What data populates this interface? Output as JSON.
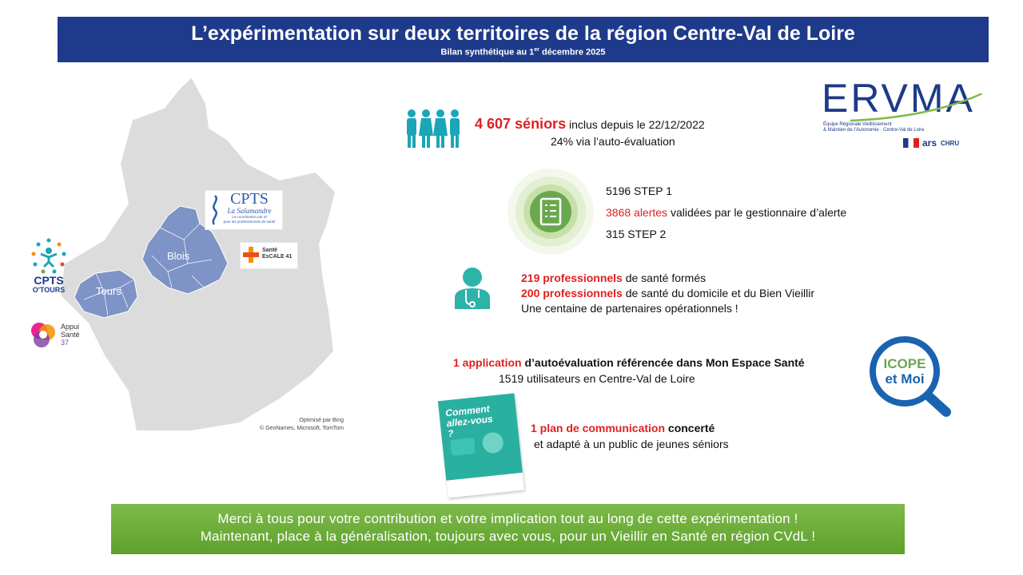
{
  "header": {
    "title": "L’expérimentation sur deux territoires de la région Centre-Val de Loire",
    "subtitle_prefix": "Bilan synthétique  au 1",
    "subtitle_sup": "er",
    "subtitle_suffix": " décembre 2025"
  },
  "map": {
    "city_blois": "Blois",
    "city_tours": "Tours",
    "credit_line1": "Optimisé par Bing",
    "credit_line2": "© GeoNames, Microsoft, TomTom",
    "region_color": "#dcdcdc",
    "territory_color": "#7e93c6"
  },
  "logos": {
    "cpts_salamandre": {
      "title": "CPTS",
      "script": "La Salamandre",
      "line1": "La coordination par et",
      "line2": "pour les professionnels de santé"
    },
    "sante_escale": {
      "line1": "Santé",
      "line2": "EsCALE 41"
    },
    "cpts_otours": {
      "line1": "CPTS",
      "line2": "O'TOURS"
    },
    "appui_sante": {
      "line1": "Appui",
      "line2": "Santé",
      "line3": "37"
    },
    "ervma": {
      "name": "ERVMA",
      "line1": "Équipe Régionale Vieillissement",
      "line2": "& Maintien de l’Autonomie · Centre-Val de Loire",
      "partner_ars": "ars",
      "partner_chru": "CHRU"
    },
    "icope": {
      "line1": "ICOPE",
      "line2": "et Moi"
    }
  },
  "stats": {
    "seniors": {
      "number": "4 607 séniors",
      "text": " inclus depuis le 22/12/2022",
      "line2": "24% via l’auto-évaluation"
    },
    "steps": {
      "step1": "5196 STEP 1",
      "alerts_number": "3868 alertes",
      "alerts_text": " validées par le gestionnaire d’alerte",
      "step2": "315 STEP 2"
    },
    "professionals": {
      "line1_number": "219 professionnels",
      "line1_text": " de santé formés",
      "line2_number": "200 professionnels",
      "line2_text": " de santé du domicile et du Bien Vieillir",
      "line3": "Une centaine de partenaires opérationnels !"
    },
    "application": {
      "number": "1 application",
      "text": " d’autoévaluation référencée dans Mon Espace Santé",
      "line2": "1519 utilisateurs en Centre-Val de Loire"
    },
    "communication": {
      "number": "1 plan de communication",
      "text": " concerté",
      "line2": "et adapté à un public de jeunes séniors",
      "brochure_title": "Comment allez-vous ?"
    }
  },
  "footer": {
    "line1": "Merci à tous pour votre contribution et votre implication tout au long de cette expérimentation !",
    "line2": "Maintenant, place à la généralisation, toujours avec vous, pour un Vieillir en Santé en région CVdL !"
  },
  "colors": {
    "header_bg": "#1e3a8a",
    "accent_red": "#e02020",
    "teal": "#1aa6b7",
    "green": "#6aa84f",
    "icope_blue": "#1a63b0",
    "footer_green": "#6aab3a"
  }
}
